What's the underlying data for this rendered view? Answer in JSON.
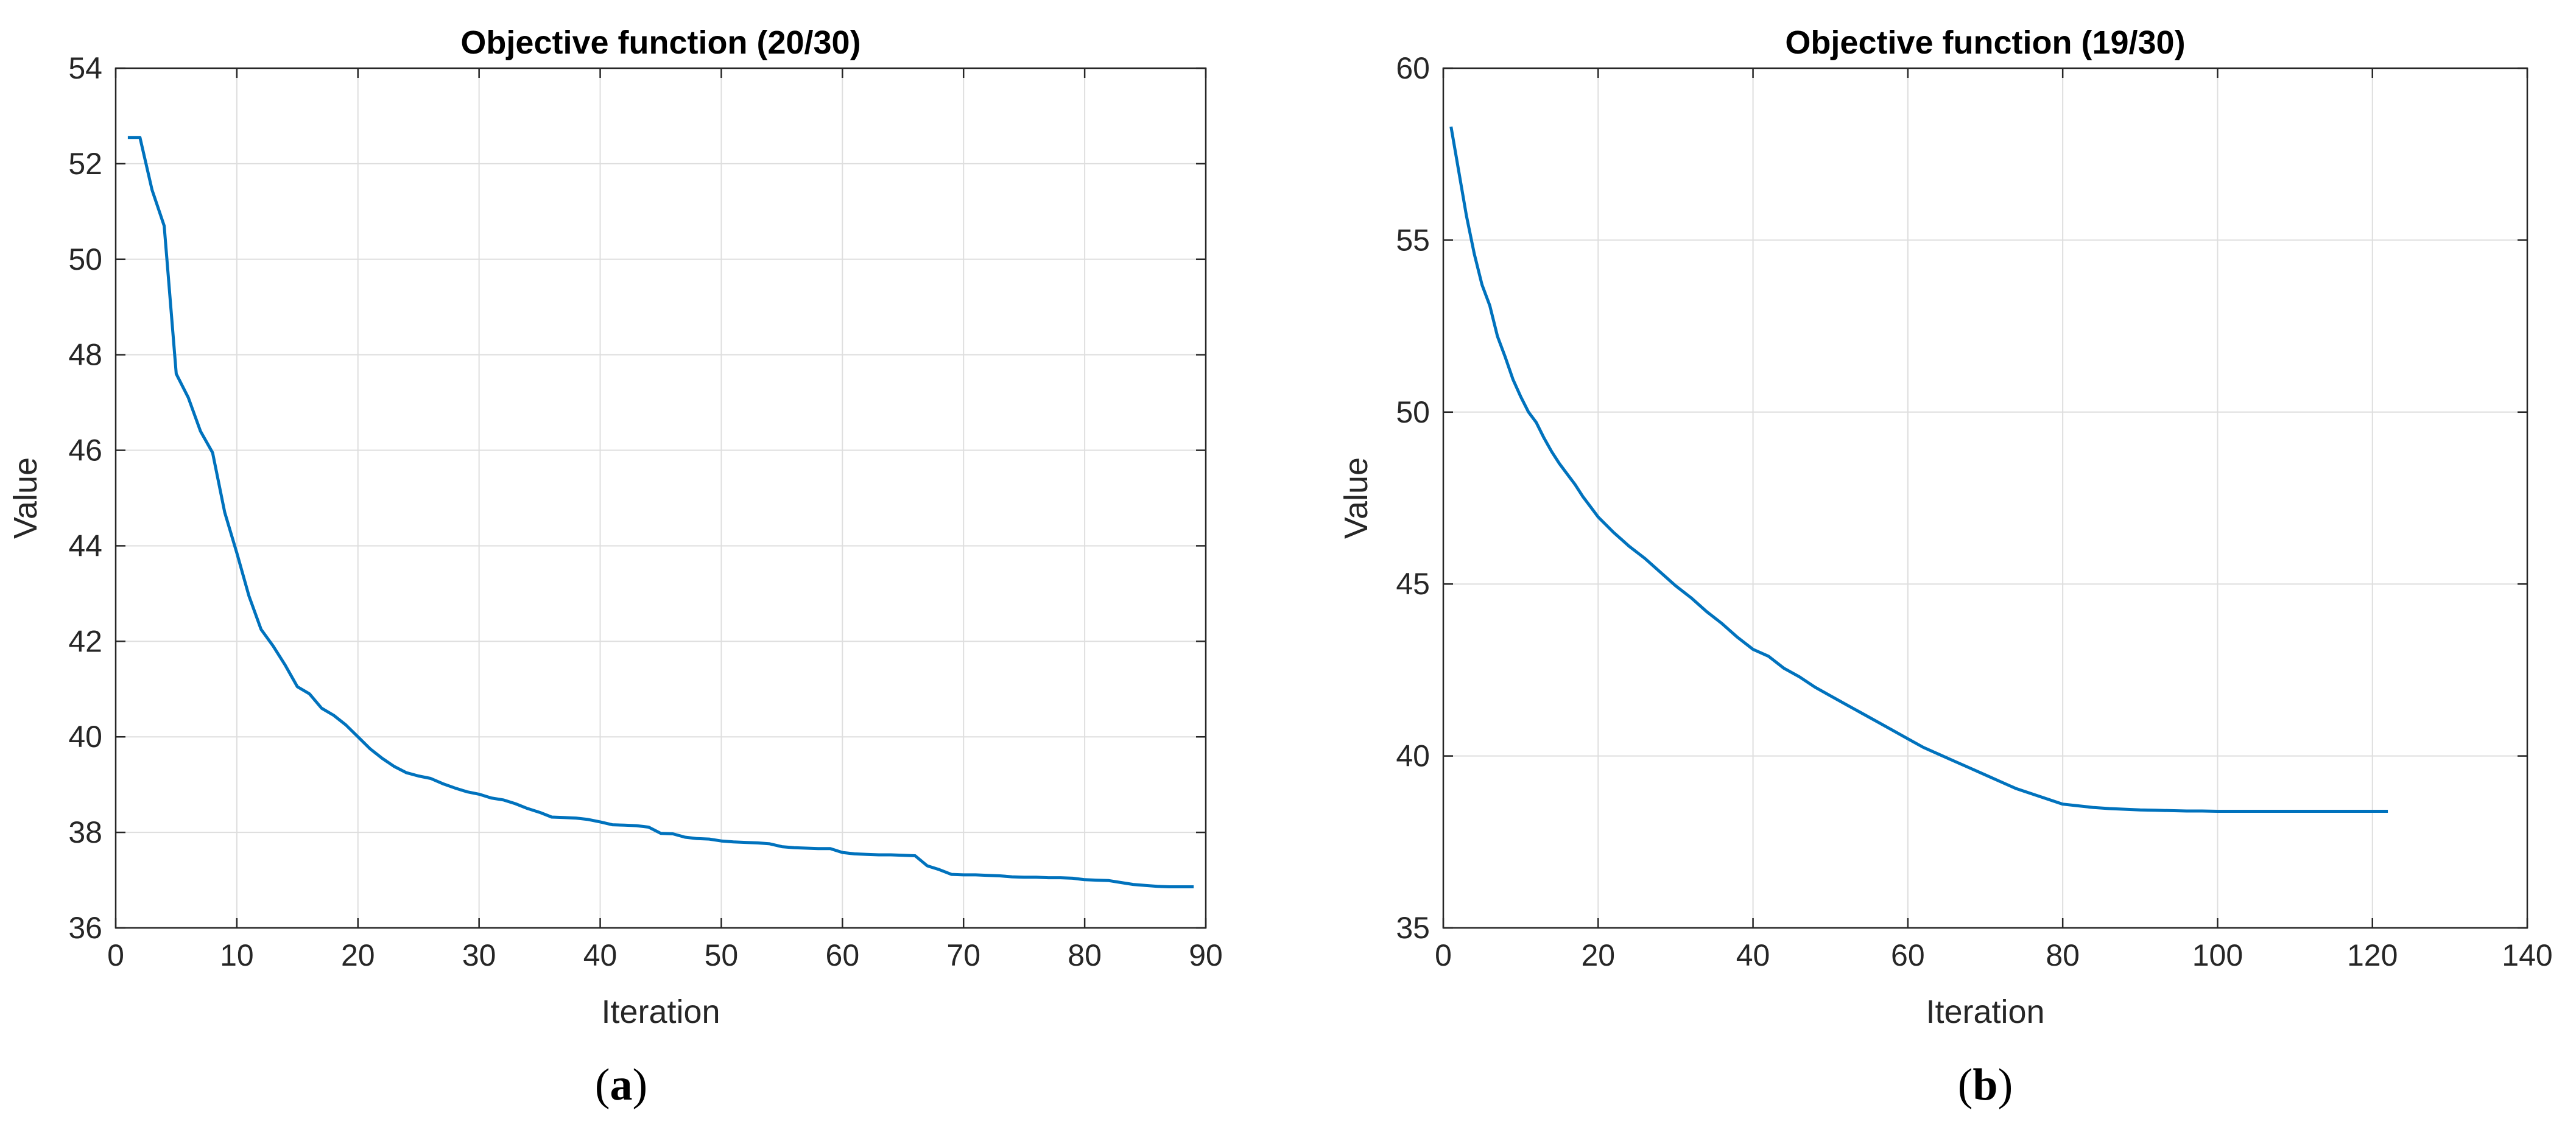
{
  "figure": {
    "panels": [
      {
        "label_open": "(",
        "label_letter": "a",
        "label_close": ")"
      },
      {
        "label_open": "(",
        "label_letter": "b",
        "label_close": ")"
      }
    ]
  },
  "colors": {
    "line": "#0072BD",
    "grid": "#dedede",
    "axis": "#262626",
    "text": "#262626"
  },
  "chart_data": [
    {
      "type": "line",
      "title": "Objective function (20/30)",
      "xlabel": "Iteration",
      "ylabel": "Value",
      "xlim": [
        0,
        90
      ],
      "ylim": [
        36,
        54
      ],
      "xticks": [
        0,
        10,
        20,
        30,
        40,
        50,
        60,
        70,
        80,
        90
      ],
      "yticks": [
        36,
        38,
        40,
        42,
        44,
        46,
        48,
        50,
        52,
        54
      ],
      "grid": true,
      "series": [
        {
          "x": [
            1,
            2,
            3,
            4,
            5,
            6,
            7,
            8,
            9,
            10,
            11,
            12,
            13,
            14,
            15,
            16,
            17,
            18,
            19,
            20,
            21,
            22,
            23,
            24,
            25,
            26,
            27,
            28,
            29,
            30,
            31,
            32,
            33,
            34,
            35,
            36,
            37,
            38,
            39,
            40,
            41,
            42,
            43,
            44,
            45,
            46,
            47,
            48,
            49,
            50,
            51,
            52,
            53,
            54,
            55,
            56,
            57,
            58,
            59,
            60,
            61,
            62,
            63,
            64,
            65,
            66,
            67,
            68,
            69,
            70,
            71,
            72,
            73,
            74,
            75,
            76,
            77,
            78,
            79,
            80,
            81,
            82,
            83,
            84,
            85,
            86,
            87,
            88,
            89
          ],
          "y": [
            52.55,
            52.55,
            51.45,
            50.7,
            47.6,
            47.1,
            46.4,
            45.95,
            44.7,
            43.85,
            42.95,
            42.25,
            41.9,
            41.5,
            41.05,
            40.9,
            40.6,
            40.45,
            40.25,
            40.0,
            39.75,
            39.55,
            39.38,
            39.25,
            39.18,
            39.13,
            39.02,
            38.93,
            38.85,
            38.8,
            38.72,
            38.68,
            38.6,
            38.5,
            38.42,
            38.32,
            38.31,
            38.3,
            38.27,
            38.22,
            38.16,
            38.15,
            38.14,
            38.11,
            37.98,
            37.97,
            37.9,
            37.87,
            37.86,
            37.82,
            37.8,
            37.79,
            37.78,
            37.76,
            37.7,
            37.68,
            37.67,
            37.66,
            37.66,
            37.58,
            37.55,
            37.54,
            37.53,
            37.53,
            37.52,
            37.51,
            37.3,
            37.22,
            37.12,
            37.11,
            37.11,
            37.1,
            37.09,
            37.07,
            37.06,
            37.06,
            37.05,
            37.05,
            37.04,
            37.01,
            37.0,
            36.99,
            36.95,
            36.91,
            36.89,
            36.87,
            36.86,
            36.86,
            36.86
          ]
        }
      ]
    },
    {
      "type": "line",
      "title": "Objective function (19/30)",
      "xlabel": "Iteration",
      "ylabel": "Value",
      "xlim": [
        0,
        140
      ],
      "ylim": [
        35,
        60
      ],
      "xticks": [
        0,
        20,
        40,
        60,
        80,
        100,
        120,
        140
      ],
      "yticks": [
        35,
        40,
        45,
        50,
        55,
        60
      ],
      "grid": true,
      "series": [
        {
          "x": [
            1,
            2,
            3,
            4,
            5,
            6,
            7,
            8,
            9,
            10,
            11,
            12,
            13,
            14,
            15,
            16,
            17,
            18,
            19,
            20,
            22,
            24,
            26,
            28,
            30,
            32,
            34,
            36,
            38,
            40,
            42,
            44,
            46,
            48,
            50,
            52,
            54,
            56,
            58,
            60,
            62,
            64,
            66,
            68,
            70,
            72,
            74,
            76,
            78,
            80,
            82,
            84,
            86,
            88,
            90,
            92,
            94,
            96,
            98,
            100,
            102,
            104,
            106,
            108,
            110,
            112,
            114,
            116,
            118,
            120,
            122
          ],
          "y": [
            58.3,
            57.0,
            55.7,
            54.6,
            53.7,
            53.1,
            52.2,
            51.6,
            50.95,
            50.45,
            50.0,
            49.7,
            49.25,
            48.85,
            48.5,
            48.2,
            47.9,
            47.55,
            47.25,
            46.95,
            46.5,
            46.1,
            45.75,
            45.35,
            44.95,
            44.6,
            44.2,
            43.85,
            43.45,
            43.1,
            42.9,
            42.55,
            42.3,
            42.0,
            41.75,
            41.5,
            41.25,
            41.0,
            40.75,
            40.5,
            40.25,
            40.05,
            39.85,
            39.65,
            39.45,
            39.25,
            39.05,
            38.9,
            38.75,
            38.6,
            38.55,
            38.5,
            38.47,
            38.45,
            38.43,
            38.42,
            38.41,
            38.4,
            38.4,
            38.39,
            38.39,
            38.39,
            38.39,
            38.39,
            38.39,
            38.39,
            38.39,
            38.39,
            38.39,
            38.39,
            38.39
          ]
        }
      ]
    }
  ]
}
